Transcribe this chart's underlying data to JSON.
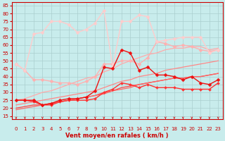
{
  "xlabel": "Vent moyen/en rafales ( km/h )",
  "background_color": "#c8ecec",
  "grid_color": "#aacfcf",
  "xlim": [
    -0.5,
    23.5
  ],
  "ylim": [
    13,
    87
  ],
  "yticks": [
    15,
    20,
    25,
    30,
    35,
    40,
    45,
    50,
    55,
    60,
    65,
    70,
    75,
    80,
    85
  ],
  "xticks": [
    0,
    1,
    2,
    3,
    4,
    5,
    6,
    7,
    8,
    9,
    10,
    11,
    12,
    13,
    14,
    15,
    16,
    17,
    18,
    19,
    20,
    21,
    22,
    23
  ],
  "x": [
    0,
    1,
    2,
    3,
    4,
    5,
    6,
    7,
    8,
    9,
    10,
    11,
    12,
    13,
    14,
    15,
    16,
    17,
    18,
    19,
    20,
    21,
    22,
    23
  ],
  "series": [
    {
      "y": [
        25,
        25,
        25,
        22,
        23,
        25,
        26,
        26,
        27,
        31,
        46,
        45,
        57,
        55,
        44,
        46,
        41,
        41,
        40,
        38,
        40,
        36,
        35,
        38
      ],
      "color": "#ee1111",
      "linewidth": 1.0,
      "marker": "D",
      "markersize": 2.5,
      "zorder": 6
    },
    {
      "y": [
        25,
        25,
        24,
        22,
        22,
        24,
        25,
        25,
        25,
        26,
        30,
        32,
        36,
        35,
        33,
        35,
        33,
        33,
        33,
        32,
        32,
        32,
        32,
        36
      ],
      "color": "#ff3333",
      "linewidth": 1.0,
      "marker": "D",
      "markersize": 2.0,
      "zorder": 5
    },
    {
      "y": [
        20,
        21,
        22,
        22,
        23,
        24,
        25,
        26,
        27,
        28,
        30,
        31,
        33,
        34,
        35,
        36,
        37,
        38,
        39,
        39,
        40,
        40,
        41,
        42
      ],
      "color": "#ff4444",
      "linewidth": 0.9,
      "marker": null,
      "markersize": 0,
      "zorder": 3
    },
    {
      "y": [
        19,
        20,
        21,
        22,
        23,
        24,
        25,
        26,
        27,
        28,
        29,
        31,
        32,
        33,
        35,
        36,
        37,
        38,
        39,
        39,
        40,
        40,
        41,
        42
      ],
      "color": "#ff6666",
      "linewidth": 0.9,
      "marker": null,
      "markersize": 0,
      "zorder": 3
    },
    {
      "y": [
        22,
        23,
        24,
        25,
        26,
        27,
        28,
        29,
        30,
        31,
        33,
        35,
        37,
        38,
        40,
        41,
        42,
        44,
        45,
        46,
        47,
        48,
        49,
        50
      ],
      "color": "#ff8888",
      "linewidth": 0.9,
      "marker": null,
      "markersize": 0,
      "zorder": 3
    },
    {
      "y": [
        25,
        26,
        28,
        30,
        31,
        33,
        35,
        37,
        39,
        40,
        43,
        45,
        48,
        50,
        52,
        54,
        55,
        57,
        58,
        58,
        59,
        59,
        57,
        58
      ],
      "color": "#ffaaaa",
      "linewidth": 0.9,
      "marker": null,
      "markersize": 0,
      "zorder": 3
    },
    {
      "y": [
        48,
        44,
        38,
        38,
        37,
        36,
        36,
        35,
        37,
        40,
        48,
        48,
        50,
        50,
        48,
        52,
        62,
        61,
        59,
        60,
        59,
        57,
        56,
        57
      ],
      "color": "#ffb0b0",
      "linewidth": 1.0,
      "marker": "D",
      "markersize": 2.5,
      "zorder": 4
    },
    {
      "y": [
        48,
        44,
        67,
        68,
        75,
        75,
        73,
        68,
        70,
        74,
        82,
        46,
        75,
        75,
        79,
        78,
        62,
        63,
        64,
        65,
        65,
        65,
        55,
        57
      ],
      "color": "#ffcccc",
      "linewidth": 1.0,
      "marker": "D",
      "markersize": 2.5,
      "zorder": 4
    }
  ],
  "arrow_color": "#cc0000",
  "xlabel_color": "#cc0000",
  "tick_color": "#cc0000"
}
